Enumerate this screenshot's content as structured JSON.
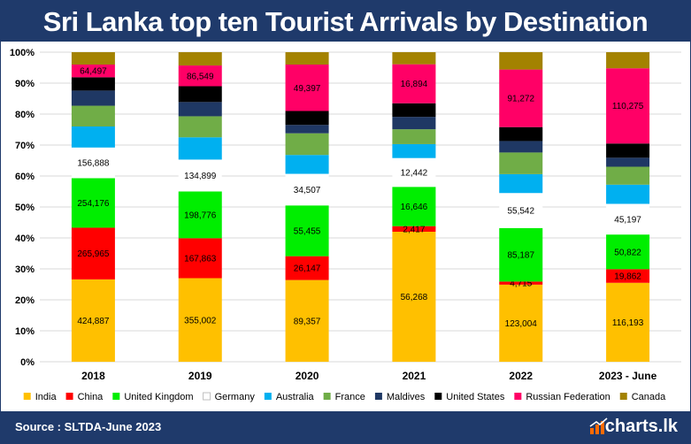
{
  "header": {
    "title": "Sri Lanka top ten Tourist Arrivals by Destination"
  },
  "footer": {
    "source": "Source : SLTDA-June 2023",
    "logo_text": "charts.lk"
  },
  "colors": {
    "frame": "#1f3a6b",
    "grid": "#d9d9d9",
    "text": "#000000"
  },
  "chart_data": {
    "type": "bar",
    "stacked": true,
    "normalized": true,
    "categories": [
      "2018",
      "2019",
      "2020",
      "2021",
      "2022",
      "2023 - June"
    ],
    "yticks": [
      "0%",
      "10%",
      "20%",
      "30%",
      "40%",
      "50%",
      "60%",
      "70%",
      "80%",
      "90%",
      "100%"
    ],
    "ylim": [
      0,
      100
    ],
    "grid": true,
    "legend_position": "bottom",
    "series": [
      {
        "name": "India",
        "color": "#ffc000",
        "values": [
          26.6,
          27.0,
          26.4,
          42.0,
          24.9,
          25.5
        ],
        "labels": [
          "424,887",
          "355,002",
          "89,357",
          "56,268",
          "123,004",
          "116,193"
        ]
      },
      {
        "name": "China",
        "color": "#ff0000",
        "values": [
          16.7,
          12.9,
          7.7,
          1.8,
          1.0,
          4.4
        ],
        "labels": [
          "265,965",
          "167,863",
          "26,147",
          "2,417",
          "4,715",
          "19,862"
        ]
      },
      {
        "name": "United Kingdom",
        "color": "#00ee00",
        "values": [
          16.0,
          15.1,
          16.4,
          12.7,
          17.3,
          11.2
        ],
        "labels": [
          "254,176",
          "198,776",
          "55,455",
          "16,646",
          "85,187",
          "50,822"
        ]
      },
      {
        "name": "Germany",
        "color": "#ffffff",
        "values": [
          9.9,
          10.3,
          10.2,
          9.3,
          11.3,
          9.9
        ],
        "labels": [
          "156,888",
          "134,899",
          "34,507",
          "12,442",
          "55,542",
          "45,197"
        ]
      },
      {
        "name": "Australia",
        "color": "#00b0f0",
        "values": [
          6.8,
          7.2,
          6.1,
          4.5,
          6.1,
          6.2
        ],
        "labels": [
          "",
          "",
          "",
          "",
          "",
          ""
        ]
      },
      {
        "name": "France",
        "color": "#70ad47",
        "values": [
          6.7,
          6.8,
          7.0,
          4.8,
          7.0,
          5.8
        ],
        "labels": [
          "",
          "",
          "",
          "",
          "",
          ""
        ]
      },
      {
        "name": "Maldives",
        "color": "#1f3864",
        "values": [
          4.9,
          4.6,
          2.7,
          4.0,
          3.7,
          2.9
        ],
        "labels": [
          "",
          "",
          "",
          "",
          "",
          ""
        ]
      },
      {
        "name": "United States",
        "color": "#000000",
        "values": [
          4.3,
          5.1,
          4.5,
          4.4,
          4.5,
          4.6
        ],
        "labels": [
          "",
          "",
          "",
          "",
          "",
          ""
        ]
      },
      {
        "name": "Russian Federation",
        "color": "#ff0066",
        "values": [
          4.1,
          6.7,
          15.0,
          12.6,
          18.6,
          24.3
        ],
        "labels": [
          "64,497",
          "86,549",
          "49,397",
          "16,894",
          "91,272",
          "110,275"
        ]
      },
      {
        "name": "Canada",
        "color": "#a38200",
        "values": [
          4.0,
          4.3,
          4.0,
          3.9,
          5.6,
          5.2
        ],
        "labels": [
          "",
          "",
          "",
          "",
          "",
          ""
        ]
      }
    ]
  }
}
